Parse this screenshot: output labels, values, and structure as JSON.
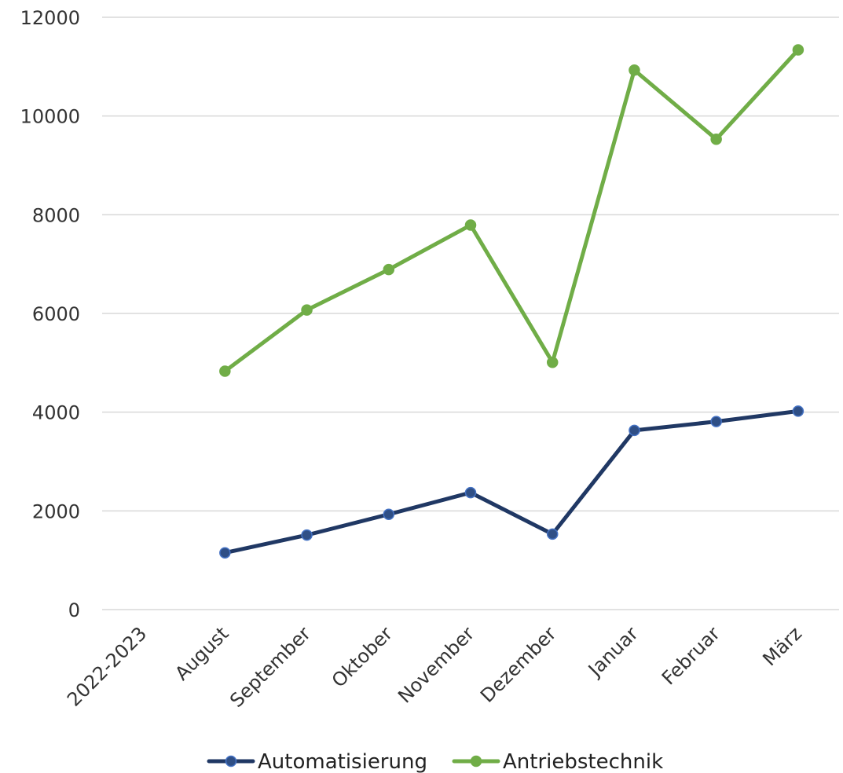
{
  "chart_data": {
    "type": "line",
    "title": "",
    "xlabel": "",
    "ylabel": "",
    "categories": [
      "2022-2023",
      "August",
      "September",
      "Oktober",
      "November",
      "Dezember",
      "Januar",
      "Februar",
      "März"
    ],
    "ylim": [
      0,
      12000
    ],
    "yticks": [
      0,
      2000,
      4000,
      6000,
      8000,
      10000,
      12000
    ],
    "ytick_labels": [
      "0",
      "2000",
      "4000",
      "6000",
      "8000",
      "10000",
      "12000"
    ],
    "grid": true,
    "legend_position": "bottom",
    "series": [
      {
        "name": "Automatisierung",
        "color": "#203864",
        "marker_fill": "#2f4f86",
        "marker_edge": "#4472c4",
        "values": [
          null,
          1150,
          1510,
          1930,
          2370,
          1530,
          3630,
          3810,
          4020
        ]
      },
      {
        "name": "Antriebstechnik",
        "color": "#70ad47",
        "marker_fill": "#70ad47",
        "marker_edge": "#70ad47",
        "values": [
          null,
          4830,
          6070,
          6890,
          7790,
          5010,
          10930,
          9530,
          11340
        ]
      }
    ]
  }
}
